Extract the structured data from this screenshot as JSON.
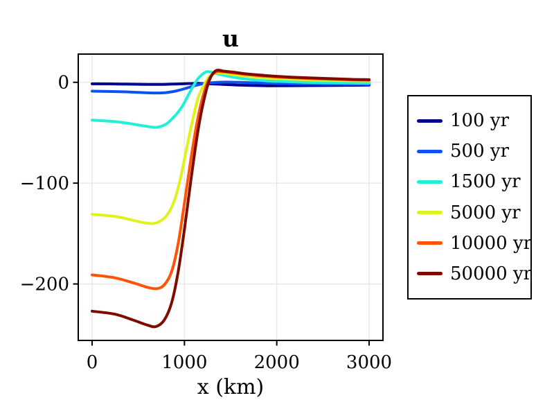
{
  "figure": {
    "background": "#ffffff"
  },
  "chart_data": {
    "type": "line",
    "title": "u",
    "xlabel": "x (km)",
    "ylabel": "",
    "xlim": [
      -150,
      3150
    ],
    "ylim": [
      -256,
      28
    ],
    "x_ticks": [
      0,
      1000,
      2000,
      3000
    ],
    "x_tick_labels": [
      "0",
      "1000",
      "2000",
      "3000"
    ],
    "y_ticks": [
      0,
      -100,
      -200
    ],
    "y_tick_labels": [
      "0",
      "−100",
      "−200"
    ],
    "grid": true,
    "grid_color": "#e6e6e6",
    "legend_position": "outside-right",
    "series": [
      {
        "name": "100 yr",
        "color": "#00008f",
        "points": [
          [
            0,
            -1.5
          ],
          [
            300,
            -1.7
          ],
          [
            600,
            -2.1
          ],
          [
            800,
            -2.0
          ],
          [
            1000,
            -1.4
          ],
          [
            1150,
            -1.0
          ],
          [
            1350,
            -1.8
          ],
          [
            1600,
            -2.8
          ],
          [
            1900,
            -3.4
          ],
          [
            2300,
            -3.3
          ],
          [
            2700,
            -3.0
          ],
          [
            3000,
            -2.8
          ]
        ]
      },
      {
        "name": "500 yr",
        "color": "#0b52f4",
        "points": [
          [
            0,
            -8.8
          ],
          [
            300,
            -9.3
          ],
          [
            500,
            -10.0
          ],
          [
            700,
            -10.6
          ],
          [
            800,
            -10.2
          ],
          [
            900,
            -8.8
          ],
          [
            1000,
            -6.4
          ],
          [
            1100,
            -3.6
          ],
          [
            1200,
            -1.4
          ],
          [
            1300,
            -0.4
          ],
          [
            1450,
            0.2
          ],
          [
            1650,
            -0.2
          ],
          [
            1900,
            -0.9
          ],
          [
            2200,
            -1.5
          ],
          [
            2600,
            -1.9
          ],
          [
            3000,
            -2.1
          ]
        ]
      },
      {
        "name": "1500 yr",
        "color": "#21f0d7",
        "points": [
          [
            0,
            -37.5
          ],
          [
            250,
            -39.0
          ],
          [
            450,
            -41.5
          ],
          [
            600,
            -43.8
          ],
          [
            700,
            -44.6
          ],
          [
            800,
            -41.5
          ],
          [
            900,
            -33.0
          ],
          [
            975,
            -24.0
          ],
          [
            1040,
            -13.0
          ],
          [
            1100,
            -3.0
          ],
          [
            1160,
            5.0
          ],
          [
            1240,
            10.5
          ],
          [
            1330,
            9.0
          ],
          [
            1450,
            6.5
          ],
          [
            1600,
            4.0
          ],
          [
            1800,
            2.0
          ],
          [
            2000,
            1.0
          ],
          [
            2300,
            0.0
          ],
          [
            2650,
            -0.6
          ],
          [
            3000,
            -0.9
          ]
        ]
      },
      {
        "name": "5000 yr",
        "color": "#e0f21e",
        "points": [
          [
            0,
            -131
          ],
          [
            250,
            -133
          ],
          [
            450,
            -137
          ],
          [
            600,
            -139.8
          ],
          [
            700,
            -139.3
          ],
          [
            800,
            -133
          ],
          [
            880,
            -120
          ],
          [
            950,
            -98
          ],
          [
            1020,
            -67
          ],
          [
            1090,
            -37
          ],
          [
            1150,
            -15
          ],
          [
            1210,
            -3
          ],
          [
            1270,
            6
          ],
          [
            1330,
            9.3
          ],
          [
            1420,
            9.0
          ],
          [
            1550,
            7.4
          ],
          [
            1700,
            5.8
          ],
          [
            1900,
            4.3
          ],
          [
            2200,
            2.9
          ],
          [
            2600,
            1.9
          ],
          [
            3000,
            1.4
          ]
        ]
      },
      {
        "name": "10000 yr",
        "color": "#ff5305",
        "points": [
          [
            0,
            -191
          ],
          [
            250,
            -194
          ],
          [
            450,
            -199
          ],
          [
            600,
            -203.3
          ],
          [
            700,
            -204.6
          ],
          [
            780,
            -201
          ],
          [
            860,
            -188
          ],
          [
            930,
            -161
          ],
          [
            1000,
            -120
          ],
          [
            1070,
            -76
          ],
          [
            1140,
            -38
          ],
          [
            1200,
            -14
          ],
          [
            1260,
            2
          ],
          [
            1330,
            9.8
          ],
          [
            1400,
            10.7
          ],
          [
            1500,
            9.6
          ],
          [
            1650,
            8.0
          ],
          [
            1850,
            6.2
          ],
          [
            2100,
            4.8
          ],
          [
            2450,
            3.4
          ],
          [
            2750,
            2.6
          ],
          [
            3000,
            2.1
          ]
        ]
      },
      {
        "name": "50000 yr",
        "color": "#7f0a00",
        "points": [
          [
            0,
            -227
          ],
          [
            250,
            -230
          ],
          [
            450,
            -236
          ],
          [
            600,
            -240.8
          ],
          [
            690,
            -242.3
          ],
          [
            780,
            -236
          ],
          [
            860,
            -219
          ],
          [
            930,
            -189
          ],
          [
            1000,
            -146
          ],
          [
            1070,
            -97
          ],
          [
            1140,
            -52
          ],
          [
            1200,
            -22
          ],
          [
            1270,
            2
          ],
          [
            1340,
            11.5
          ],
          [
            1430,
            11.0
          ],
          [
            1520,
            10.2
          ],
          [
            1670,
            8.4
          ],
          [
            1900,
            6.6
          ],
          [
            2150,
            5.2
          ],
          [
            2500,
            3.9
          ],
          [
            2800,
            3.0
          ],
          [
            3000,
            2.6
          ]
        ]
      }
    ]
  }
}
